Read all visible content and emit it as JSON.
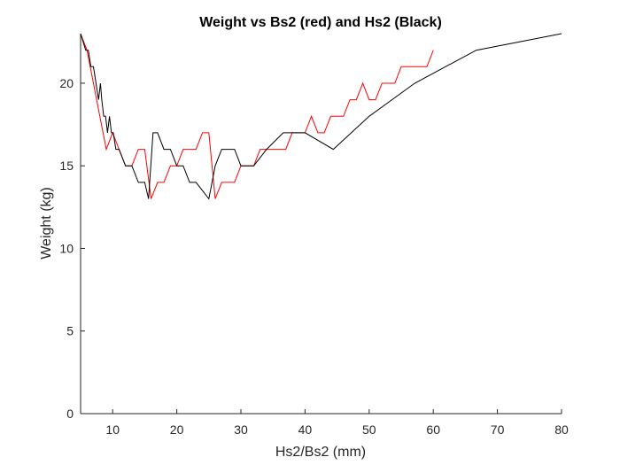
{
  "chart_data": {
    "type": "line",
    "title": "Weight vs Bs2 (red) and Hs2 (Black)",
    "xlabel": "Hs2/Bs2 (mm)",
    "ylabel": "Weight (kg)",
    "xlim": [
      5,
      80
    ],
    "ylim": [
      0,
      23
    ],
    "xticks": [
      "10",
      "20",
      "30",
      "40",
      "50",
      "60",
      "70",
      "80"
    ],
    "yticks": [
      "0",
      "5",
      "10",
      "15",
      "20"
    ],
    "grid": false,
    "box": false,
    "series": [
      {
        "color": "#ff0000",
        "x": [
          5,
          6,
          7,
          8,
          9,
          10,
          11,
          12,
          13,
          14,
          15,
          16,
          17,
          18,
          19,
          20,
          21,
          22,
          23,
          24,
          25,
          26,
          27,
          28,
          29,
          30,
          31,
          32,
          33,
          34,
          35,
          36,
          37,
          38,
          39,
          40,
          41,
          42,
          43,
          44,
          45,
          46,
          47,
          48,
          49,
          50,
          51,
          52,
          53,
          54,
          55,
          56,
          57,
          58,
          59,
          60
        ],
        "y": [
          23,
          22,
          20,
          18,
          16,
          17,
          16,
          15,
          15,
          16,
          16,
          13,
          14,
          14,
          15,
          15,
          16,
          16,
          16,
          17,
          17,
          13,
          14,
          14,
          14,
          15,
          15,
          15,
          16,
          16,
          16,
          16,
          16,
          17,
          17,
          17,
          18,
          17,
          17,
          18,
          18,
          18,
          19,
          19,
          20,
          19,
          19,
          20,
          20,
          20,
          21,
          21,
          21,
          21,
          21,
          22
        ]
      },
      {
        "color": "#000000",
        "x": [
          5,
          5.8,
          6.2,
          6.6,
          7.0,
          7.4,
          7.8,
          8.1,
          8.3,
          8.6,
          8.9,
          9.2,
          9.5,
          9.8,
          10.1,
          10.5,
          11,
          12,
          13,
          14,
          15,
          15.6,
          16.3,
          17,
          18,
          19,
          20,
          21,
          22,
          23,
          24,
          25,
          26,
          27,
          28,
          29,
          30,
          32,
          34,
          36.6,
          40,
          44.4,
          50,
          57.1,
          66.7,
          80
        ],
        "y": [
          23,
          22,
          22,
          21,
          21,
          20,
          19,
          20,
          19,
          18,
          18,
          17,
          18,
          17,
          17,
          16,
          16,
          15,
          15,
          14,
          14,
          13,
          17,
          17,
          16,
          16,
          15,
          15,
          14,
          14,
          13.5,
          13,
          15,
          16,
          16,
          16,
          15,
          15,
          16,
          17,
          17,
          16,
          18,
          20,
          22,
          23
        ]
      }
    ]
  }
}
